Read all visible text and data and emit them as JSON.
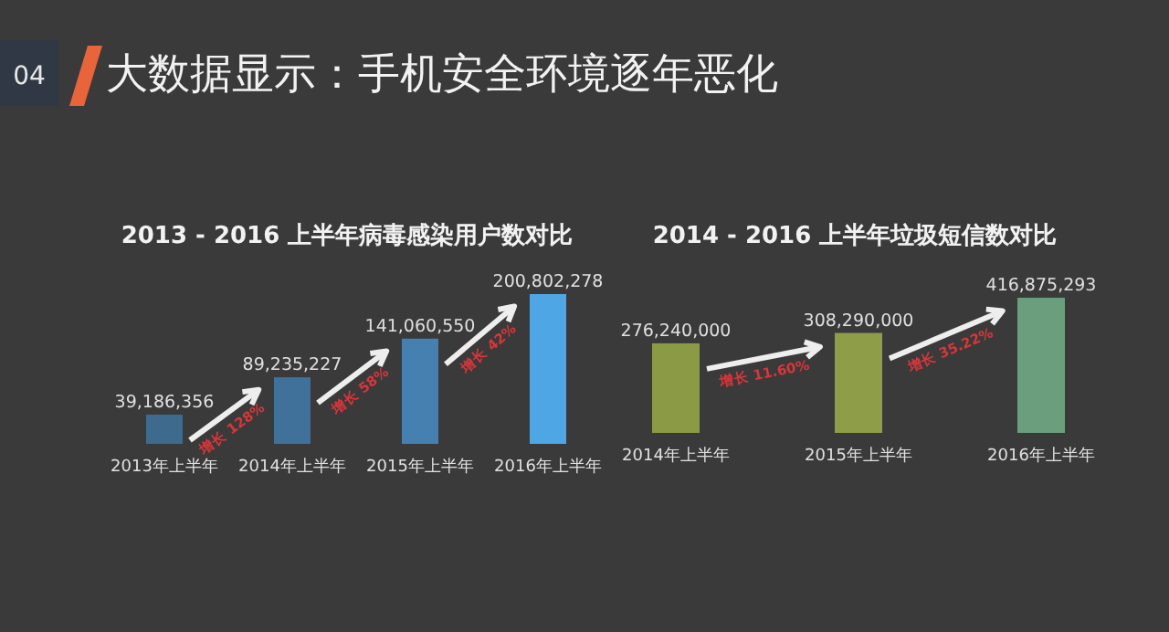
{
  "chart_data": [
    {
      "type": "other",
      "title": "大数据显示：手机安全环境逐年恶化",
      "annotations": [
        "04"
      ]
    },
    {
      "type": "bar",
      "title": "2013 - 2016 上半年病毒感染用户数对比",
      "categories": [
        "2013年上半年",
        "2014年上半年",
        "2015年上半年",
        "2016年上半年"
      ],
      "values": [
        39186356,
        89235227,
        141060550,
        200802278
      ],
      "value_labels": [
        "39,186,356",
        "89,235,227",
        "141,060,550",
        "200,802,278"
      ],
      "colors": [
        "#3e6a8e",
        "#40719a",
        "#4680b0",
        "#4fa6e4"
      ],
      "annotations": [
        "增长 128%",
        "增长 58%",
        "增长 42%"
      ]
    },
    {
      "type": "bar",
      "title": "2014 - 2016 上半年垃圾短信数对比",
      "categories": [
        "2014年上半年",
        "2015年上半年",
        "2016年上半年"
      ],
      "values": [
        276240000,
        308290000,
        416875293
      ],
      "value_labels": [
        "276,240,000",
        "308,290,000",
        "416,875,293"
      ],
      "colors": [
        "#8b9a45",
        "#8e9d48",
        "#6b9e7d"
      ],
      "annotations": [
        "增长 11.60%",
        "增长 35.22%"
      ]
    }
  ]
}
